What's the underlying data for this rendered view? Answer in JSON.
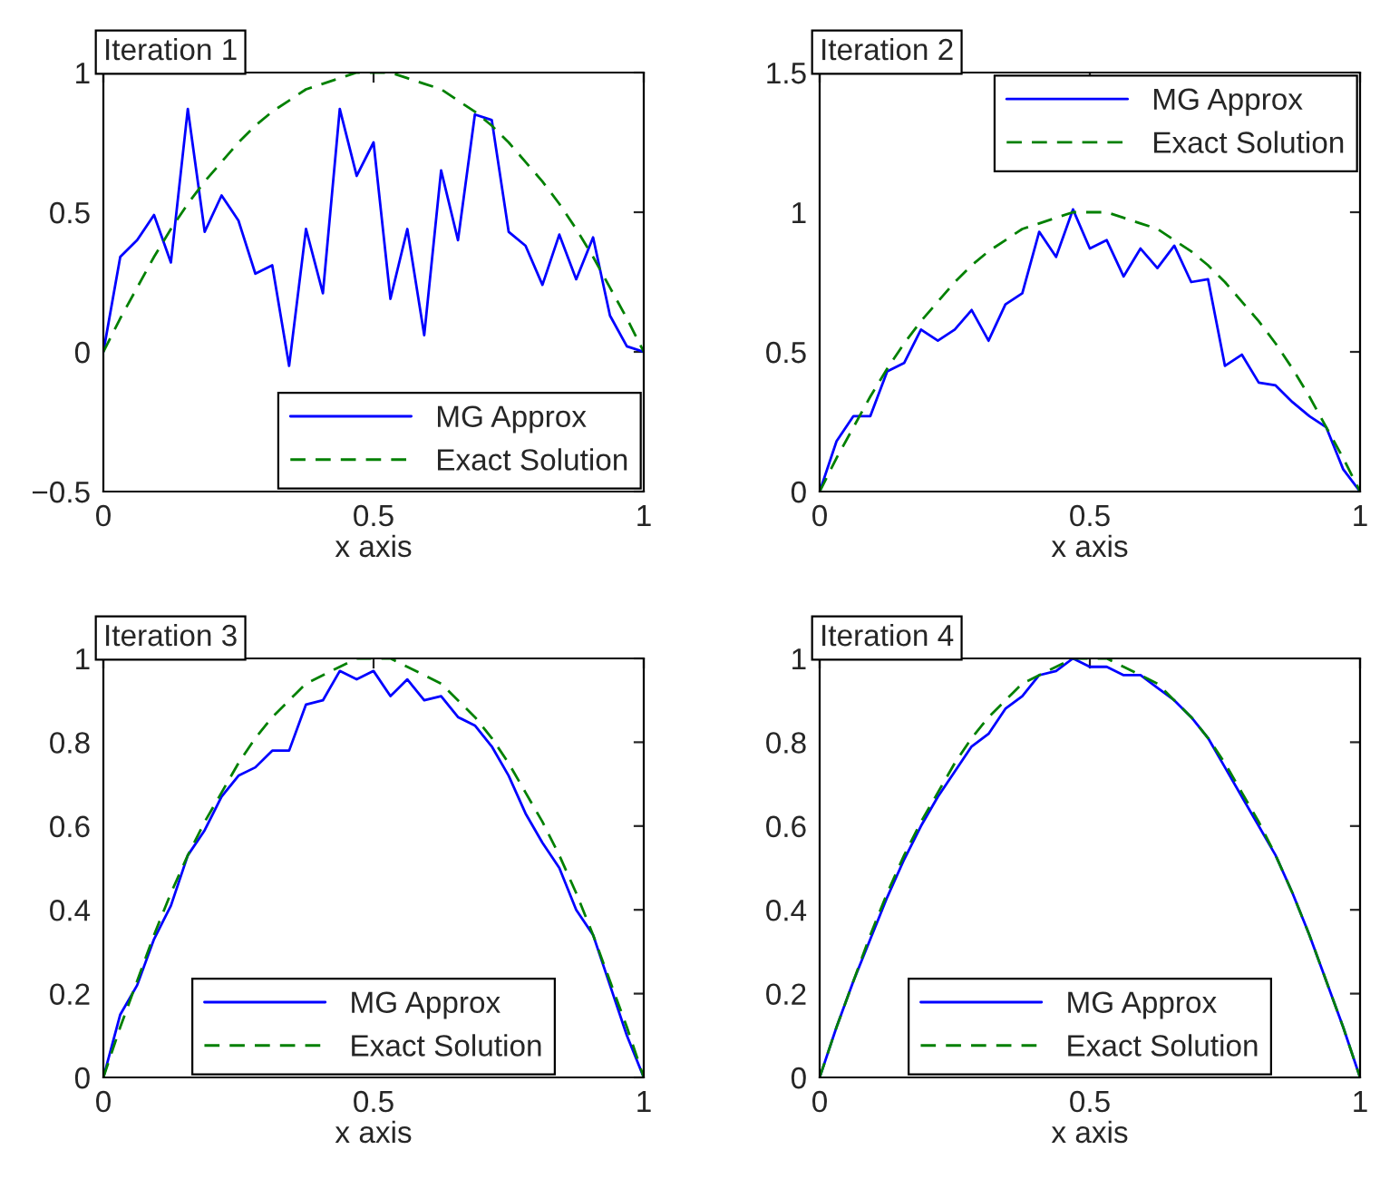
{
  "chart_data": [
    {
      "type": "line",
      "title": "Iteration 1",
      "xlabel": "x axis",
      "x": [
        0,
        0.03125,
        0.0625,
        0.09375,
        0.125,
        0.15625,
        0.1875,
        0.21875,
        0.25,
        0.28125,
        0.3125,
        0.34375,
        0.375,
        0.40625,
        0.4375,
        0.46875,
        0.5,
        0.53125,
        0.5625,
        0.59375,
        0.625,
        0.65625,
        0.6875,
        0.71875,
        0.75,
        0.78125,
        0.8125,
        0.84375,
        0.875,
        0.90625,
        0.9375,
        0.96875,
        1
      ],
      "series": [
        {
          "name": "MG Approx",
          "color": "#0000ff",
          "line_style": "solid",
          "values": [
            0,
            0.34,
            0.4,
            0.49,
            0.32,
            0.87,
            0.43,
            0.56,
            0.47,
            0.28,
            0.31,
            -0.05,
            0.44,
            0.21,
            0.87,
            0.63,
            0.75,
            0.19,
            0.44,
            0.06,
            0.65,
            0.4,
            0.85,
            0.83,
            0.43,
            0.38,
            0.24,
            0.42,
            0.26,
            0.41,
            0.13,
            0.02,
            0
          ]
        },
        {
          "name": "Exact Solution",
          "color": "#008000",
          "line_style": "dashed",
          "values": [
            0,
            0.12,
            0.23,
            0.34,
            0.44,
            0.53,
            0.61,
            0.68,
            0.75,
            0.81,
            0.86,
            0.9,
            0.94,
            0.96,
            0.98,
            1.0,
            1.0,
            1.0,
            0.98,
            0.96,
            0.94,
            0.9,
            0.86,
            0.81,
            0.75,
            0.68,
            0.61,
            0.53,
            0.44,
            0.34,
            0.23,
            0.12,
            0
          ]
        }
      ],
      "xlim": [
        0,
        1
      ],
      "xticks": [
        0,
        0.5,
        1
      ],
      "ylim": [
        -0.5,
        1
      ],
      "yticks": [
        {
          "value": -0.5,
          "label": "−0.5"
        },
        0,
        0.5,
        1
      ],
      "legend": "bottom right",
      "grid": false
    },
    {
      "type": "line",
      "title": "Iteration 2",
      "xlabel": "x axis",
      "x": [
        0,
        0.03125,
        0.0625,
        0.09375,
        0.125,
        0.15625,
        0.1875,
        0.21875,
        0.25,
        0.28125,
        0.3125,
        0.34375,
        0.375,
        0.40625,
        0.4375,
        0.46875,
        0.5,
        0.53125,
        0.5625,
        0.59375,
        0.625,
        0.65625,
        0.6875,
        0.71875,
        0.75,
        0.78125,
        0.8125,
        0.84375,
        0.875,
        0.90625,
        0.9375,
        0.96875,
        1
      ],
      "series": [
        {
          "name": "MG Approx",
          "color": "#0000ff",
          "line_style": "solid",
          "values": [
            0,
            0.18,
            0.27,
            0.27,
            0.43,
            0.46,
            0.58,
            0.54,
            0.58,
            0.65,
            0.54,
            0.67,
            0.71,
            0.93,
            0.84,
            1.01,
            0.87,
            0.9,
            0.77,
            0.87,
            0.8,
            0.88,
            0.75,
            0.76,
            0.45,
            0.49,
            0.39,
            0.38,
            0.32,
            0.27,
            0.23,
            0.08,
            0
          ]
        },
        {
          "name": "Exact Solution",
          "color": "#008000",
          "line_style": "dashed",
          "values": [
            0,
            0.12,
            0.23,
            0.34,
            0.44,
            0.53,
            0.61,
            0.68,
            0.75,
            0.81,
            0.86,
            0.9,
            0.94,
            0.96,
            0.98,
            1.0,
            1.0,
            1.0,
            0.98,
            0.96,
            0.94,
            0.9,
            0.86,
            0.81,
            0.75,
            0.68,
            0.61,
            0.53,
            0.44,
            0.34,
            0.23,
            0.12,
            0
          ]
        }
      ],
      "xlim": [
        0,
        1
      ],
      "xticks": [
        0,
        0.5,
        1
      ],
      "ylim": [
        0,
        1.5
      ],
      "yticks": [
        0,
        0.5,
        1,
        1.5
      ],
      "legend": "top right",
      "grid": false
    },
    {
      "type": "line",
      "title": "Iteration 3",
      "xlabel": "x axis",
      "x": [
        0,
        0.03125,
        0.0625,
        0.09375,
        0.125,
        0.15625,
        0.1875,
        0.21875,
        0.25,
        0.28125,
        0.3125,
        0.34375,
        0.375,
        0.40625,
        0.4375,
        0.46875,
        0.5,
        0.53125,
        0.5625,
        0.59375,
        0.625,
        0.65625,
        0.6875,
        0.71875,
        0.75,
        0.78125,
        0.8125,
        0.84375,
        0.875,
        0.90625,
        0.9375,
        0.96875,
        1
      ],
      "series": [
        {
          "name": "MG Approx",
          "color": "#0000ff",
          "line_style": "solid",
          "values": [
            0,
            0.15,
            0.22,
            0.33,
            0.41,
            0.53,
            0.59,
            0.67,
            0.72,
            0.74,
            0.78,
            0.78,
            0.89,
            0.9,
            0.97,
            0.95,
            0.97,
            0.91,
            0.95,
            0.9,
            0.91,
            0.86,
            0.84,
            0.79,
            0.72,
            0.63,
            0.56,
            0.5,
            0.4,
            0.34,
            0.22,
            0.1,
            0
          ]
        },
        {
          "name": "Exact Solution",
          "color": "#008000",
          "line_style": "dashed",
          "values": [
            0,
            0.12,
            0.23,
            0.34,
            0.44,
            0.53,
            0.61,
            0.68,
            0.75,
            0.81,
            0.86,
            0.9,
            0.94,
            0.96,
            0.98,
            1.0,
            1.0,
            1.0,
            0.98,
            0.96,
            0.94,
            0.9,
            0.86,
            0.81,
            0.75,
            0.68,
            0.61,
            0.53,
            0.44,
            0.34,
            0.23,
            0.12,
            0
          ]
        }
      ],
      "xlim": [
        0,
        1
      ],
      "xticks": [
        0,
        0.5,
        1
      ],
      "ylim": [
        0,
        1
      ],
      "yticks": [
        0,
        0.2,
        0.4,
        0.6,
        0.8,
        1
      ],
      "legend": "bottom",
      "grid": false
    },
    {
      "type": "line",
      "title": "Iteration 4",
      "xlabel": "x axis",
      "x": [
        0,
        0.03125,
        0.0625,
        0.09375,
        0.125,
        0.15625,
        0.1875,
        0.21875,
        0.25,
        0.28125,
        0.3125,
        0.34375,
        0.375,
        0.40625,
        0.4375,
        0.46875,
        0.5,
        0.53125,
        0.5625,
        0.59375,
        0.625,
        0.65625,
        0.6875,
        0.71875,
        0.75,
        0.78125,
        0.8125,
        0.84375,
        0.875,
        0.90625,
        0.9375,
        0.96875,
        1
      ],
      "series": [
        {
          "name": "MG Approx",
          "color": "#0000ff",
          "line_style": "solid",
          "values": [
            0,
            0.12,
            0.23,
            0.33,
            0.43,
            0.52,
            0.6,
            0.67,
            0.73,
            0.79,
            0.82,
            0.88,
            0.91,
            0.96,
            0.97,
            1.0,
            0.98,
            0.98,
            0.96,
            0.96,
            0.93,
            0.9,
            0.86,
            0.81,
            0.74,
            0.67,
            0.6,
            0.53,
            0.44,
            0.34,
            0.23,
            0.12,
            0
          ]
        },
        {
          "name": "Exact Solution",
          "color": "#008000",
          "line_style": "dashed",
          "values": [
            0,
            0.12,
            0.23,
            0.34,
            0.44,
            0.53,
            0.61,
            0.68,
            0.75,
            0.81,
            0.86,
            0.9,
            0.94,
            0.96,
            0.98,
            1.0,
            1.0,
            1.0,
            0.98,
            0.96,
            0.94,
            0.9,
            0.86,
            0.81,
            0.75,
            0.68,
            0.61,
            0.53,
            0.44,
            0.34,
            0.23,
            0.12,
            0
          ]
        }
      ],
      "xlim": [
        0,
        1
      ],
      "xticks": [
        0,
        0.5,
        1
      ],
      "ylim": [
        0,
        1
      ],
      "yticks": [
        0,
        0.2,
        0.4,
        0.6,
        0.8,
        1
      ],
      "legend": "bottom",
      "grid": false
    }
  ]
}
